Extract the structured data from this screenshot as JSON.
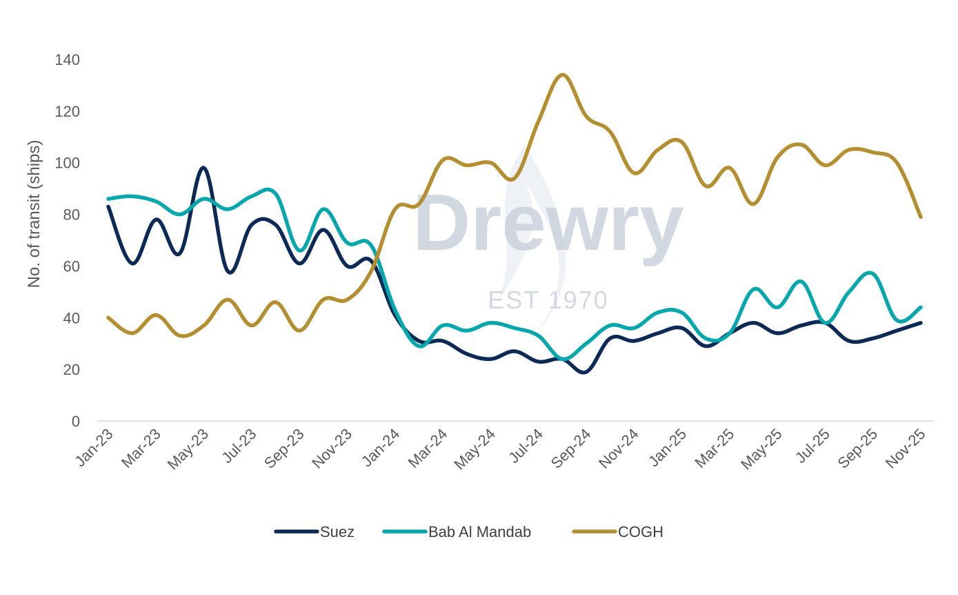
{
  "chart_data": {
    "type": "line",
    "title": "",
    "xlabel": "",
    "ylabel": "No. of transit (ships)",
    "ylim": [
      0,
      140
    ],
    "yticks": [
      0,
      20,
      40,
      60,
      80,
      100,
      120,
      140
    ],
    "grid": false,
    "legend_position": "bottom",
    "x": [
      "Jan-23",
      "Feb-23",
      "Mar-23",
      "Apr-23",
      "May-23",
      "Jun-23",
      "Jul-23",
      "Aug-23",
      "Sep-23",
      "Oct-23",
      "Nov-23",
      "Dec-23",
      "Jan-24",
      "Feb-24",
      "Mar-24",
      "Apr-24",
      "May-24",
      "Jun-24",
      "Jul-24",
      "Aug-24",
      "Sep-24",
      "Oct-24",
      "Nov-24",
      "Dec-24",
      "Jan-25",
      "Feb-25",
      "Mar-25",
      "Apr-25",
      "May-25",
      "Jun-25",
      "Jul-25",
      "Aug-25",
      "Sep-25",
      "Oct-25",
      "Nov-25"
    ],
    "xtick_labels": [
      "Jan-23",
      "Mar-23",
      "May-23",
      "Jul-23",
      "Sep-23",
      "Nov-23",
      "Jan-24",
      "Mar-24",
      "May-24",
      "Jul-24",
      "Sep-24",
      "Nov-24",
      "Jan-25",
      "Mar-25",
      "May-25",
      "Jul-25",
      "Sep-25",
      "Nov-25"
    ],
    "series": [
      {
        "name": "Suez",
        "color": "#0c2a55",
        "values": [
          83,
          61,
          78,
          65,
          98,
          58,
          76,
          76,
          61,
          74,
          60,
          62,
          41,
          31,
          31,
          26,
          24,
          27,
          23,
          24,
          19,
          32,
          31,
          34,
          36,
          29,
          34,
          38,
          34,
          37,
          38,
          31,
          32,
          35,
          38
        ]
      },
      {
        "name": "Bab Al Mandab",
        "color": "#05a6ac",
        "values": [
          86,
          87,
          85,
          80,
          86,
          82,
          87,
          88,
          66,
          82,
          69,
          68,
          43,
          29,
          37,
          35,
          38,
          36,
          33,
          24,
          30,
          37,
          36,
          42,
          42,
          32,
          34,
          51,
          44,
          54,
          38,
          50,
          57,
          39,
          44
        ]
      },
      {
        "name": "COGH",
        "color": "#b38f32",
        "values": [
          40,
          34,
          41,
          33,
          37,
          47,
          37,
          46,
          35,
          47,
          47,
          58,
          82,
          84,
          101,
          99,
          100,
          94,
          116,
          134,
          118,
          112,
          96,
          105,
          108,
          91,
          98,
          84,
          102,
          107,
          99,
          105,
          104,
          100,
          79
        ]
      }
    ]
  },
  "watermark": {
    "brand": "Drewry",
    "tagline": "EST 1970"
  }
}
